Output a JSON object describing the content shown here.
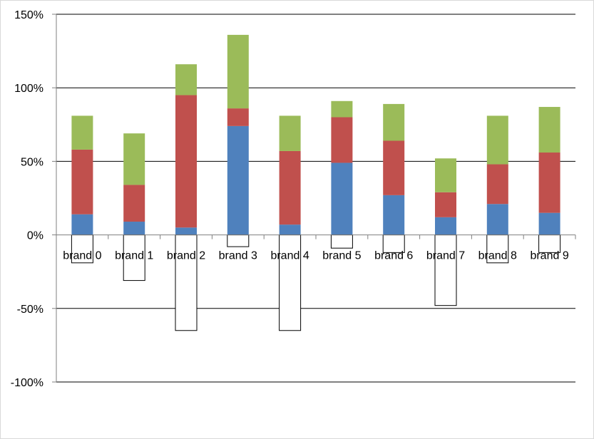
{
  "chart_data": {
    "type": "bar",
    "stacked": true,
    "categories": [
      "brand 0",
      "brand 1",
      "brand 2",
      "brand 3",
      "brand 4",
      "brand 5",
      "brand 6",
      "brand 7",
      "brand 8",
      "brand 9"
    ],
    "series": [
      {
        "color": "#4f81bd",
        "values": [
          14,
          9,
          5,
          74,
          7,
          49,
          27,
          12,
          21,
          15
        ]
      },
      {
        "color": "#c0504d",
        "values": [
          44,
          25,
          90,
          12,
          50,
          31,
          37,
          17,
          27,
          41
        ]
      },
      {
        "color": "#9bbb59",
        "values": [
          23,
          35,
          21,
          50,
          24,
          11,
          25,
          23,
          33,
          31
        ]
      },
      {
        "color": "#ffffff",
        "outline": "#000000",
        "values": [
          -19,
          -31,
          -65,
          -8,
          -65,
          -9,
          -12,
          -48,
          -19,
          -12
        ]
      }
    ],
    "ylim": [
      -100,
      150
    ],
    "yticks": [
      -100,
      -50,
      0,
      50,
      100,
      150
    ],
    "ytick_labels": [
      "-100%",
      "-50%",
      "0%",
      "50%",
      "100%",
      "150%"
    ],
    "grid": true,
    "legend": "none",
    "title": "",
    "xlabel": "",
    "ylabel": ""
  }
}
